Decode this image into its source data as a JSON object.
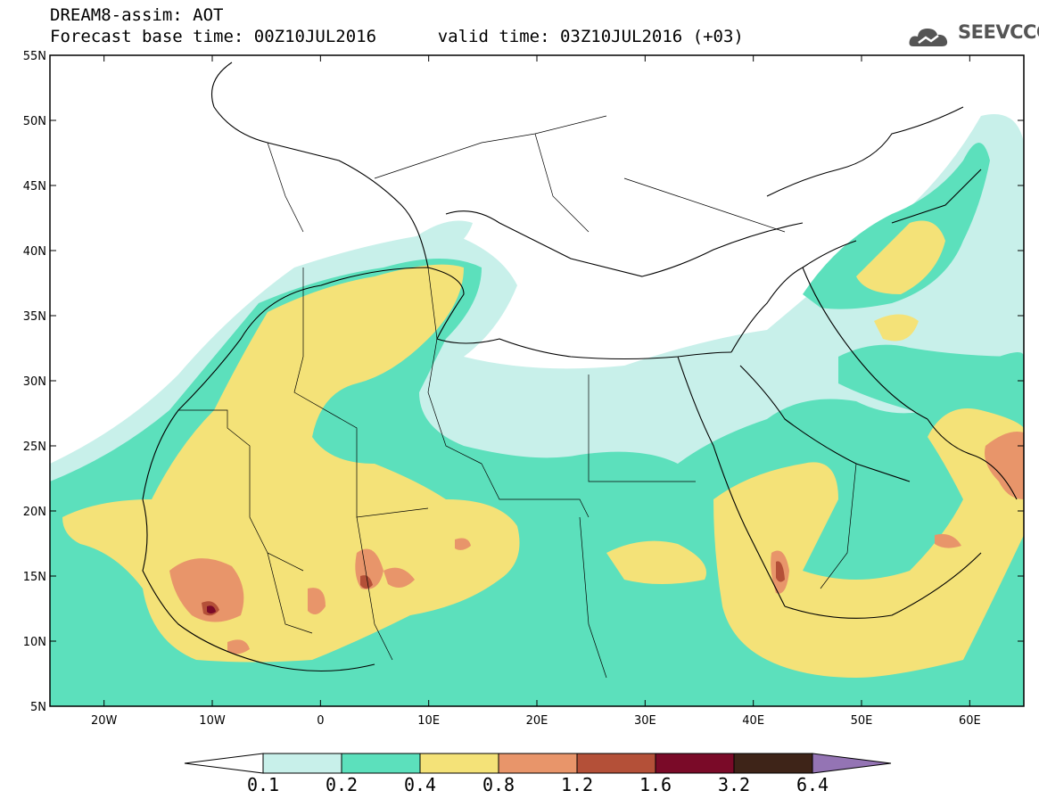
{
  "header": {
    "title": "DREAM8-assim: AOT",
    "forecast_base": "Forecast base time: 00Z10JUL2016",
    "valid_time": "valid time: 03Z10JUL2016 (+03)"
  },
  "logo": {
    "text": "SEEVCCC",
    "icon": "cloud-icon"
  },
  "map": {
    "lon_range": [
      -25,
      65
    ],
    "lat_range": [
      5,
      55
    ],
    "lat_ticks": [
      "5N",
      "10N",
      "15N",
      "20N",
      "25N",
      "30N",
      "35N",
      "40N",
      "45N",
      "50N",
      "55N"
    ],
    "lon_ticks": [
      "20W",
      "10W",
      "0",
      "10E",
      "20E",
      "30E",
      "40E",
      "50E",
      "60E"
    ]
  },
  "colorbar": {
    "labels": [
      "0.1",
      "0.2",
      "0.4",
      "0.8",
      "1.2",
      "1.6",
      "3.2",
      "6.4"
    ],
    "colors": [
      "#c8f0ea",
      "#5ce0bc",
      "#f4e278",
      "#e8956a",
      "#b45038",
      "#7a0a28",
      "#3e2418",
      "#9474b4"
    ]
  }
}
